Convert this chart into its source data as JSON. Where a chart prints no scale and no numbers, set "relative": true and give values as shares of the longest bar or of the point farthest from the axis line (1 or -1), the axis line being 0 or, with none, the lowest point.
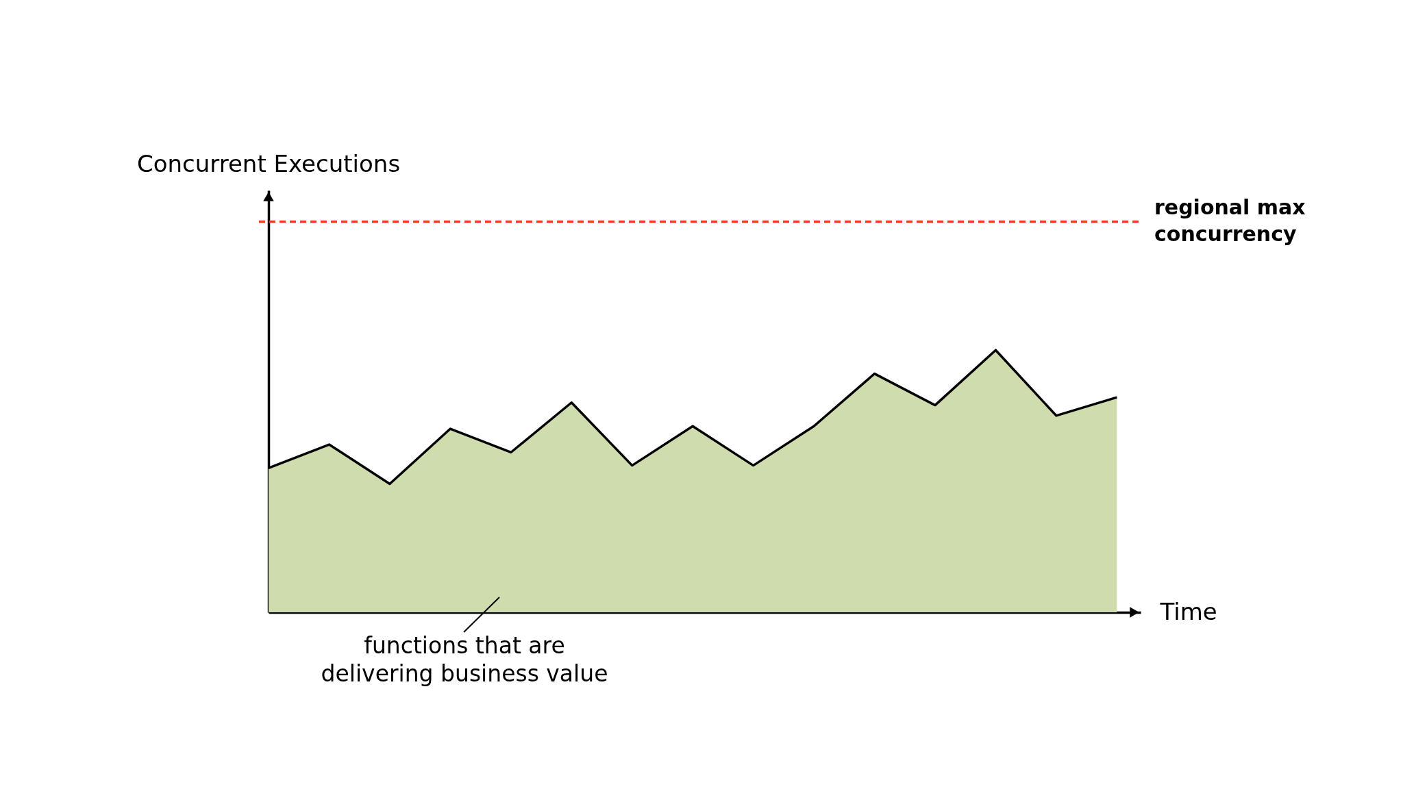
{
  "chart_data": {
    "type": "area",
    "xlabel": "Time",
    "annotations": [
      "Concurrent Executions",
      "functions that are delivering business value"
    ],
    "categories": [
      null,
      null,
      null,
      null,
      null,
      null,
      null,
      null,
      null,
      null,
      null,
      null,
      null,
      null,
      null
    ],
    "relative": true,
    "series": [
      {
        "color": "#cfdcae",
        "values": [
          0.55,
          0.64,
          0.49,
          0.7,
          0.61,
          0.8,
          0.56,
          0.71,
          0.56,
          0.71,
          0.91,
          0.79,
          1,
          0.75,
          0.82
        ]
      }
    ],
    "ref_lines": [
      {
        "axis": "y",
        "value": 1.49,
        "label": "regional max concurrency",
        "color": "#ef3b24",
        "line_style": "dashed"
      }
    ]
  }
}
